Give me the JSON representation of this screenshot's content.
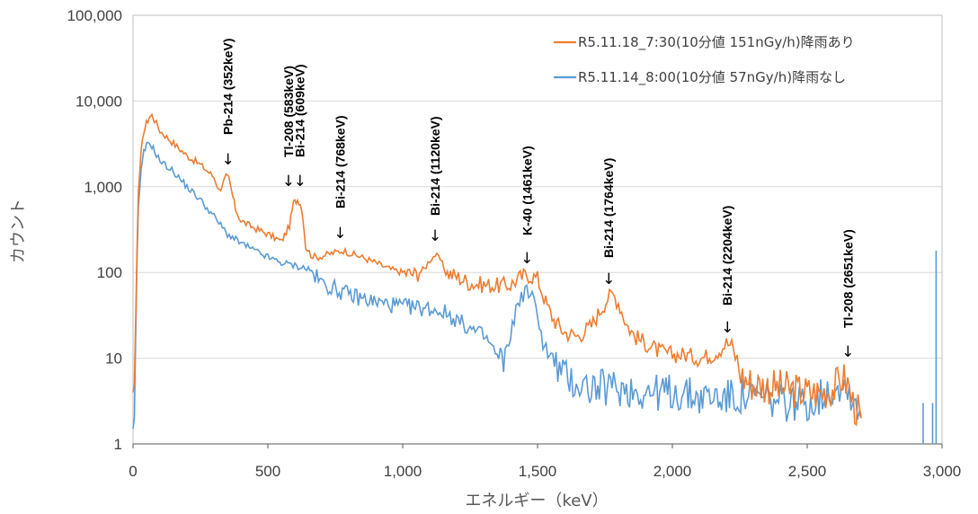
{
  "chart_data": {
    "type": "line",
    "xlabel": "エネルギー（keV）",
    "ylabel": "カウント",
    "xlim": [
      0,
      3000
    ],
    "ylim": [
      1,
      100000
    ],
    "yscale": "log",
    "x_ticks": [
      "0",
      "500",
      "1,000",
      "1,500",
      "2,000",
      "2,500",
      "3,000"
    ],
    "y_ticks": [
      "1",
      "10",
      "100",
      "1,000",
      "10,000",
      "100,000"
    ],
    "grid": true,
    "legend_position": "top-right",
    "series": [
      {
        "name": "R5.11.18_7:30(10分値 151nGy/h)降雨あり",
        "color": "#ED7D31",
        "x": [
          0,
          5,
          10,
          15,
          20,
          30,
          40,
          50,
          60,
          70,
          80,
          100,
          150,
          200,
          250,
          300,
          320,
          330,
          345,
          355,
          365,
          380,
          400,
          450,
          500,
          550,
          580,
          595,
          610,
          620,
          630,
          640,
          660,
          680,
          700,
          730,
          760,
          780,
          800,
          850,
          900,
          950,
          1000,
          1050,
          1080,
          1100,
          1120,
          1140,
          1160,
          1200,
          1250,
          1300,
          1350,
          1400,
          1430,
          1460,
          1480,
          1500,
          1530,
          1560,
          1600,
          1650,
          1700,
          1730,
          1760,
          1780,
          1800,
          1830,
          1860,
          1900,
          1950,
          2000,
          2050,
          2100,
          2150,
          2180,
          2200,
          2220,
          2240,
          2260,
          2300,
          2400,
          2500,
          2550,
          2600,
          2630,
          2650,
          2670,
          2700
        ],
        "y": [
          4,
          5,
          30,
          200,
          900,
          2500,
          4500,
          5500,
          6500,
          6800,
          6000,
          4500,
          3200,
          2300,
          1800,
          1300,
          900,
          1050,
          1300,
          1250,
          900,
          550,
          400,
          330,
          280,
          230,
          350,
          650,
          700,
          650,
          450,
          200,
          160,
          150,
          155,
          165,
          175,
          180,
          170,
          150,
          130,
          110,
          100,
          95,
          110,
          140,
          160,
          140,
          100,
          90,
          75,
          72,
          70,
          72,
          85,
          95,
          90,
          85,
          45,
          28,
          20,
          18,
          24,
          35,
          50,
          55,
          45,
          25,
          18,
          15,
          12,
          11,
          11,
          10,
          11,
          13,
          15,
          14,
          9,
          6,
          5,
          4.5,
          4,
          4,
          4.5,
          6,
          5,
          3,
          2
        ]
      },
      {
        "name": "R5.11.14_8:00(10分値 57nGy/h)降雨なし",
        "color": "#5B9BD5",
        "x": [
          0,
          5,
          10,
          15,
          20,
          30,
          40,
          50,
          60,
          70,
          80,
          100,
          150,
          200,
          250,
          300,
          350,
          400,
          450,
          500,
          550,
          600,
          650,
          700,
          800,
          900,
          1000,
          1100,
          1150,
          1200,
          1250,
          1300,
          1330,
          1350,
          1380,
          1400,
          1420,
          1440,
          1460,
          1480,
          1500,
          1520,
          1550,
          1600,
          1650,
          1700,
          1800,
          1900,
          2000,
          2100,
          2200,
          2300,
          2400,
          2500,
          2550,
          2600,
          2620,
          2650,
          2680,
          2700
        ],
        "y": [
          1.5,
          2,
          20,
          150,
          600,
          1500,
          2500,
          3000,
          3200,
          3000,
          2600,
          2000,
          1500,
          1000,
          700,
          450,
          280,
          220,
          180,
          150,
          130,
          120,
          110,
          75,
          55,
          45,
          40,
          38,
          35,
          28,
          22,
          18,
          14,
          10,
          9,
          20,
          35,
          55,
          60,
          50,
          35,
          15,
          10,
          6,
          5,
          4.5,
          4.5,
          4,
          4,
          3.5,
          3.5,
          3.5,
          3,
          3,
          3.5,
          4.5,
          5,
          4.5,
          3,
          2
        ]
      }
    ],
    "annotations": [
      {
        "label": "Pb-214 (352keV)",
        "x": 352
      },
      {
        "label": "Tl-208 (583keV)",
        "x": 583
      },
      {
        "label": "Bi-214 (609keV)",
        "x": 609
      },
      {
        "label": "Bi-214 (768keV)",
        "x": 768
      },
      {
        "label": "Bi-214 (1120keV)",
        "x": 1120
      },
      {
        "label": "K-40 (1461keV)",
        "x": 1461
      },
      {
        "label": "Bi-214 (1764keV)",
        "x": 1764
      },
      {
        "label": "Bi-214 (2204keV)",
        "x": 2204
      },
      {
        "label": "Tl-208 (2651keV)",
        "x": 2651
      }
    ]
  }
}
